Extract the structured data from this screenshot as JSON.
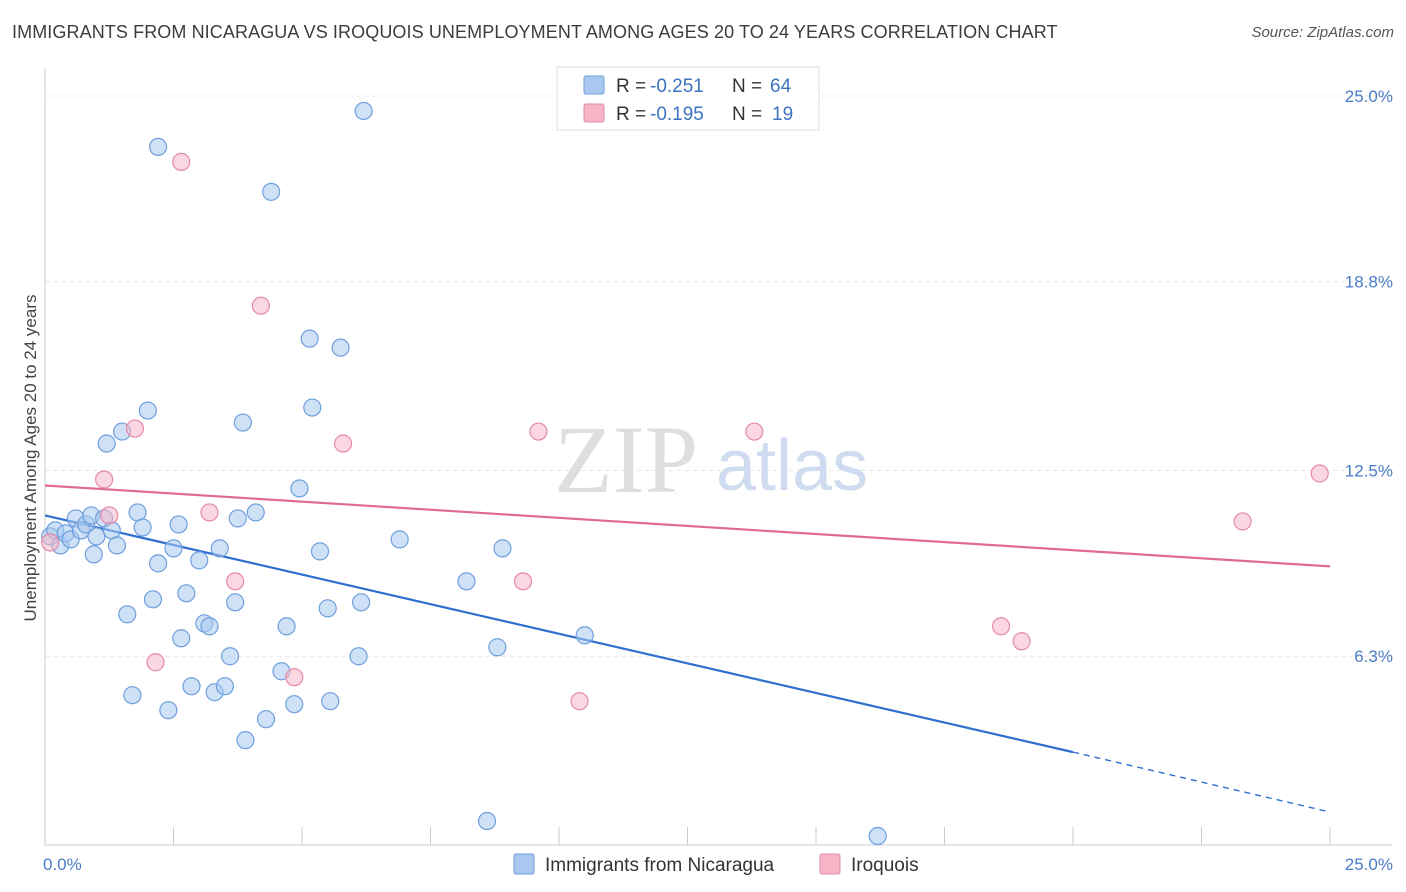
{
  "header": {
    "title": "IMMIGRANTS FROM NICARAGUA VS IROQUOIS UNEMPLOYMENT AMONG AGES 20 TO 24 YEARS CORRELATION CHART",
    "source": "Source: ZipAtlas.com"
  },
  "watermark": {
    "zip": "ZIP",
    "atlas": "atlas"
  },
  "legend": {
    "rows": [
      {
        "r_label": "R =",
        "r_value": "-0.251",
        "n_label": "N =",
        "n_value": "64",
        "color": "#a8c8f0"
      },
      {
        "r_label": "R =",
        "r_value": "-0.195",
        "n_label": "N =",
        "n_value": "19",
        "color": "#f7b6c8"
      }
    ]
  },
  "bottom_legend": {
    "items": [
      {
        "label": "Immigrants from Nicaragua",
        "color": "#a8c8f0"
      },
      {
        "label": "Iroquois",
        "color": "#f7b6c8"
      }
    ]
  },
  "chart_data": {
    "type": "scatter",
    "xlabel": "",
    "ylabel": "Unemployment Among Ages 20 to 24 years",
    "xlim": [
      0,
      25
    ],
    "ylim": [
      0,
      25.6
    ],
    "x_tick_labels": [
      "0.0%",
      "25.0%"
    ],
    "y_ticks": [
      {
        "value": 6.3,
        "label": "6.3%"
      },
      {
        "value": 12.5,
        "label": "12.5%"
      },
      {
        "value": 18.8,
        "label": "18.8%"
      },
      {
        "value": 25.0,
        "label": "25.0%"
      }
    ],
    "grid": true,
    "legend_position": "top-center",
    "series": [
      {
        "name": "Immigrants from Nicaragua",
        "color": "#a8c8f0",
        "stroke": "#6f9fdc",
        "line_color": "#2f6fd0",
        "trend": {
          "x0": 0,
          "y0": 11.0,
          "x1": 20,
          "y1": 3.1,
          "dash_to_x": 25,
          "dash_to_y": 1.1
        },
        "points": [
          [
            0.1,
            10.3
          ],
          [
            0.2,
            10.5
          ],
          [
            0.3,
            10.0
          ],
          [
            0.4,
            10.4
          ],
          [
            0.5,
            10.2
          ],
          [
            0.6,
            10.9
          ],
          [
            0.7,
            10.5
          ],
          [
            0.8,
            10.7
          ],
          [
            0.9,
            11.0
          ],
          [
            0.95,
            9.7
          ],
          [
            1.0,
            10.3
          ],
          [
            1.15,
            10.9
          ],
          [
            1.2,
            13.4
          ],
          [
            1.3,
            10.5
          ],
          [
            1.4,
            10.0
          ],
          [
            1.5,
            13.8
          ],
          [
            1.6,
            7.7
          ],
          [
            1.7,
            5.0
          ],
          [
            1.8,
            11.1
          ],
          [
            1.9,
            10.6
          ],
          [
            2.0,
            14.5
          ],
          [
            2.1,
            8.2
          ],
          [
            2.2,
            23.3
          ],
          [
            2.2,
            9.4
          ],
          [
            2.4,
            4.5
          ],
          [
            2.5,
            9.9
          ],
          [
            2.6,
            10.7
          ],
          [
            2.65,
            6.9
          ],
          [
            2.75,
            8.4
          ],
          [
            2.85,
            5.3
          ],
          [
            3.0,
            9.5
          ],
          [
            3.1,
            7.4
          ],
          [
            3.2,
            7.3
          ],
          [
            3.3,
            5.1
          ],
          [
            3.4,
            9.9
          ],
          [
            3.5,
            5.3
          ],
          [
            3.6,
            6.3
          ],
          [
            3.7,
            8.1
          ],
          [
            3.75,
            10.9
          ],
          [
            3.85,
            14.1
          ],
          [
            3.9,
            3.5
          ],
          [
            4.1,
            11.1
          ],
          [
            4.3,
            4.2
          ],
          [
            4.4,
            21.8
          ],
          [
            4.6,
            5.8
          ],
          [
            4.7,
            7.3
          ],
          [
            4.85,
            4.7
          ],
          [
            4.95,
            11.9
          ],
          [
            5.15,
            16.9
          ],
          [
            5.2,
            14.6
          ],
          [
            5.35,
            9.8
          ],
          [
            5.5,
            7.9
          ],
          [
            5.55,
            4.8
          ],
          [
            5.75,
            16.6
          ],
          [
            6.1,
            6.3
          ],
          [
            6.15,
            8.1
          ],
          [
            6.2,
            24.5
          ],
          [
            6.9,
            10.2
          ],
          [
            8.2,
            8.8
          ],
          [
            8.6,
            0.8
          ],
          [
            8.8,
            6.6
          ],
          [
            8.9,
            9.9
          ],
          [
            10.5,
            7.0
          ],
          [
            16.2,
            0.3
          ]
        ]
      },
      {
        "name": "Iroquois",
        "color": "#f7b6c8",
        "stroke": "#e58aa6",
        "line_color": "#e06a93",
        "trend": {
          "x0": 0,
          "y0": 12.0,
          "x1": 25,
          "y1": 9.3
        },
        "points": [
          [
            0.1,
            10.1
          ],
          [
            1.15,
            12.2
          ],
          [
            1.25,
            11.0
          ],
          [
            1.75,
            13.9
          ],
          [
            2.15,
            6.1
          ],
          [
            2.65,
            22.8
          ],
          [
            3.2,
            11.1
          ],
          [
            3.7,
            8.8
          ],
          [
            4.2,
            18.0
          ],
          [
            4.85,
            5.6
          ],
          [
            5.8,
            13.4
          ],
          [
            9.3,
            8.8
          ],
          [
            9.6,
            13.8
          ],
          [
            10.4,
            4.8
          ],
          [
            13.8,
            13.8
          ],
          [
            18.6,
            7.3
          ],
          [
            19.0,
            6.8
          ],
          [
            23.3,
            10.8
          ],
          [
            24.8,
            12.4
          ]
        ]
      }
    ]
  }
}
